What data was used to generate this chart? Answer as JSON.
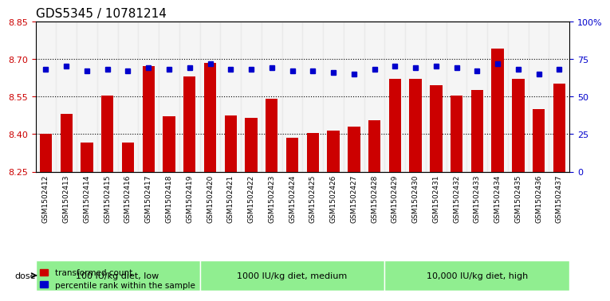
{
  "title": "GDS5345 / 10781214",
  "samples": [
    "GSM1502412",
    "GSM1502413",
    "GSM1502414",
    "GSM1502415",
    "GSM1502416",
    "GSM1502417",
    "GSM1502418",
    "GSM1502419",
    "GSM1502420",
    "GSM1502421",
    "GSM1502422",
    "GSM1502423",
    "GSM1502424",
    "GSM1502425",
    "GSM1502426",
    "GSM1502427",
    "GSM1502428",
    "GSM1502429",
    "GSM1502430",
    "GSM1502431",
    "GSM1502432",
    "GSM1502433",
    "GSM1502434",
    "GSM1502435",
    "GSM1502436",
    "GSM1502437"
  ],
  "red_values": [
    8.4,
    8.48,
    8.365,
    8.555,
    8.365,
    8.67,
    8.47,
    8.63,
    8.685,
    8.475,
    8.465,
    8.54,
    8.385,
    8.405,
    8.415,
    8.43,
    8.455,
    8.62,
    8.62,
    8.595,
    8.555,
    8.575,
    8.74,
    8.62,
    8.5,
    8.6
  ],
  "blue_values": [
    68,
    70,
    67,
    68,
    67,
    69,
    68,
    69,
    72,
    68,
    68,
    69,
    67,
    67,
    66,
    65,
    68,
    70,
    69,
    70,
    69,
    67,
    72,
    68,
    65,
    68
  ],
  "ylim_left": [
    8.25,
    8.85
  ],
  "ylim_right": [
    0,
    100
  ],
  "yticks_left": [
    8.25,
    8.4,
    8.55,
    8.7,
    8.85
  ],
  "yticks_right": [
    0,
    25,
    50,
    75,
    100
  ],
  "ytick_labels_right": [
    "0",
    "25",
    "50",
    "75",
    "100%"
  ],
  "groups": [
    {
      "label": "100 IU/kg diet, low",
      "start": 0,
      "end": 8
    },
    {
      "label": "1000 IU/kg diet, medium",
      "start": 8,
      "end": 17
    },
    {
      "label": "10,000 IU/kg diet, high",
      "start": 17,
      "end": 26
    }
  ],
  "group_colors": [
    "#90EE90",
    "#90EE90",
    "#90EE90"
  ],
  "bar_color": "#cc0000",
  "dot_color": "#0000cc",
  "bar_width": 0.6,
  "baseline": 8.25,
  "legend_items": [
    {
      "label": "transformed count",
      "color": "#cc0000",
      "marker": "s"
    },
    {
      "label": "percentile rank within the sample",
      "color": "#0000cc",
      "marker": "s"
    }
  ],
  "dose_label": "dose",
  "grid_color": "#000000",
  "grid_linestyle": "dotted"
}
